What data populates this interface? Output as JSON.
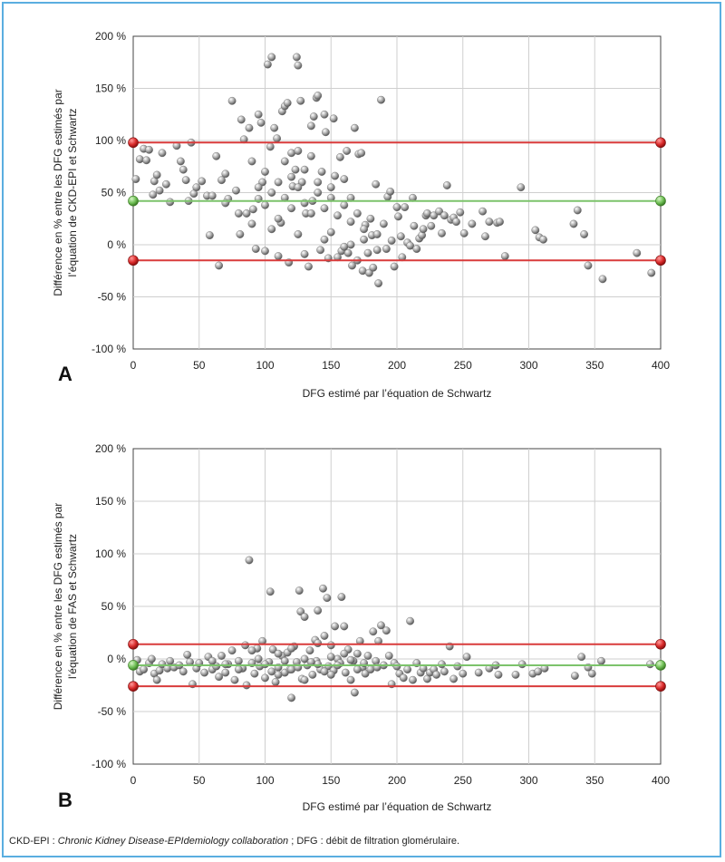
{
  "chart_data": [
    {
      "type": "scatter",
      "panel_label": "A",
      "xlabel": "DFG estimé par l’équation de Schwartz",
      "ylabel_lines": [
        "Différence  en  %  entre les DFG estimés par",
        "l’équation de CKD-EPI et Schwartz"
      ],
      "xlim": [
        0,
        400
      ],
      "ylim": [
        -100,
        200
      ],
      "x_ticks": [
        "0",
        "50",
        "100",
        "150",
        "200",
        "250",
        "300",
        "350",
        "400"
      ],
      "y_ticks": [
        "200 %",
        "150 %",
        "100 %",
        "50 %",
        "0 %",
        "-50 %",
        "-100 %"
      ],
      "grid": true,
      "reference_lines": [
        {
          "kind": "upper limit of agreement",
          "y": 98,
          "color": "#d93b3b"
        },
        {
          "kind": "mean difference",
          "y": 42,
          "color": "#7cc36b"
        },
        {
          "kind": "lower limit of agreement",
          "y": -15,
          "color": "#d93b3b"
        }
      ],
      "points": [
        [
          2,
          63
        ],
        [
          5,
          82
        ],
        [
          8,
          92
        ],
        [
          10,
          81
        ],
        [
          12,
          91
        ],
        [
          15,
          48
        ],
        [
          16,
          61
        ],
        [
          18,
          67
        ],
        [
          20,
          52
        ],
        [
          22,
          88
        ],
        [
          25,
          58
        ],
        [
          28,
          41
        ],
        [
          33,
          95
        ],
        [
          36,
          80
        ],
        [
          38,
          72
        ],
        [
          40,
          62
        ],
        [
          42,
          42
        ],
        [
          44,
          98
        ],
        [
          46,
          49
        ],
        [
          48,
          55
        ],
        [
          52,
          61
        ],
        [
          56,
          47
        ],
        [
          58,
          9
        ],
        [
          60,
          47
        ],
        [
          63,
          85
        ],
        [
          65,
          -20
        ],
        [
          67,
          62
        ],
        [
          70,
          68
        ],
        [
          72,
          44
        ],
        [
          75,
          138
        ],
        [
          78,
          52
        ],
        [
          81,
          10
        ],
        [
          82,
          120
        ],
        [
          84,
          101
        ],
        [
          86,
          30
        ],
        [
          88,
          112
        ],
        [
          90,
          80
        ],
        [
          91,
          34
        ],
        [
          93,
          -4
        ],
        [
          95,
          125
        ],
        [
          97,
          117
        ],
        [
          98,
          60
        ],
        [
          100,
          -6
        ],
        [
          102,
          173
        ],
        [
          104,
          94
        ],
        [
          105,
          180
        ],
        [
          107,
          112
        ],
        [
          109,
          102
        ],
        [
          110,
          -11
        ],
        [
          112,
          21
        ],
        [
          113,
          128
        ],
        [
          115,
          133
        ],
        [
          117,
          136
        ],
        [
          118,
          -17
        ],
        [
          120,
          88
        ],
        [
          121,
          56
        ],
        [
          123,
          72
        ],
        [
          124,
          180
        ],
        [
          125,
          172
        ],
        [
          127,
          138
        ],
        [
          128,
          60
        ],
        [
          130,
          -9
        ],
        [
          131,
          30
        ],
        [
          133,
          -21
        ],
        [
          135,
          114
        ],
        [
          136,
          42
        ],
        [
          137,
          123
        ],
        [
          139,
          141
        ],
        [
          140,
          143
        ],
        [
          142,
          -5
        ],
        [
          143,
          70
        ],
        [
          145,
          125
        ],
        [
          146,
          108
        ],
        [
          148,
          -13
        ],
        [
          150,
          12
        ],
        [
          152,
          121
        ],
        [
          153,
          66
        ],
        [
          155,
          -12
        ],
        [
          157,
          84
        ],
        [
          158,
          -6
        ],
        [
          160,
          63
        ],
        [
          162,
          90
        ],
        [
          163,
          -8
        ],
        [
          165,
          45
        ],
        [
          166,
          -20
        ],
        [
          168,
          112
        ],
        [
          170,
          -15
        ],
        [
          171,
          87
        ],
        [
          173,
          88
        ],
        [
          174,
          -25
        ],
        [
          176,
          19
        ],
        [
          178,
          -8
        ],
        [
          179,
          -27
        ],
        [
          181,
          9
        ],
        [
          182,
          -22
        ],
        [
          184,
          58
        ],
        [
          186,
          -37
        ],
        [
          188,
          139
        ],
        [
          190,
          20
        ],
        [
          192,
          -4
        ],
        [
          193,
          46
        ],
        [
          195,
          51
        ],
        [
          196,
          4
        ],
        [
          198,
          -21
        ],
        [
          200,
          36
        ],
        [
          201,
          27
        ],
        [
          203,
          8
        ],
        [
          204,
          -12
        ],
        [
          206,
          36
        ],
        [
          208,
          2
        ],
        [
          210,
          -1
        ],
        [
          212,
          45
        ],
        [
          213,
          18
        ],
        [
          215,
          -4
        ],
        [
          217,
          6
        ],
        [
          219,
          9
        ],
        [
          220,
          15
        ],
        [
          222,
          28
        ],
        [
          223,
          30
        ],
        [
          226,
          18
        ],
        [
          228,
          28
        ],
        [
          232,
          32
        ],
        [
          234,
          11
        ],
        [
          236,
          28
        ],
        [
          238,
          57
        ],
        [
          241,
          24
        ],
        [
          243,
          26
        ],
        [
          245,
          22
        ],
        [
          248,
          31
        ],
        [
          251,
          11
        ],
        [
          257,
          20
        ],
        [
          265,
          32
        ],
        [
          267,
          8
        ],
        [
          270,
          22
        ],
        [
          276,
          21
        ],
        [
          278,
          22
        ],
        [
          282,
          -11
        ],
        [
          294,
          55
        ],
        [
          305,
          14
        ],
        [
          308,
          7
        ],
        [
          311,
          5
        ],
        [
          334,
          20
        ],
        [
          337,
          33
        ],
        [
          342,
          10
        ],
        [
          345,
          -20
        ],
        [
          356,
          -33
        ],
        [
          382,
          -8
        ],
        [
          393,
          -27
        ],
        [
          95,
          44
        ],
        [
          100,
          38
        ],
        [
          105,
          50
        ],
        [
          110,
          25
        ],
        [
          115,
          45
        ],
        [
          120,
          35
        ],
        [
          125,
          55
        ],
        [
          130,
          40
        ],
        [
          135,
          30
        ],
        [
          140,
          50
        ],
        [
          145,
          35
        ],
        [
          150,
          45
        ],
        [
          155,
          28
        ],
        [
          160,
          38
        ],
        [
          165,
          22
        ],
        [
          170,
          30
        ],
        [
          175,
          15
        ],
        [
          180,
          25
        ],
        [
          185,
          10
        ],
        [
          100,
          70
        ],
        [
          110,
          60
        ],
        [
          120,
          65
        ],
        [
          130,
          72
        ],
        [
          140,
          60
        ],
        [
          150,
          55
        ],
        [
          115,
          80
        ],
        [
          125,
          90
        ],
        [
          135,
          85
        ],
        [
          105,
          15
        ],
        [
          125,
          10
        ],
        [
          145,
          5
        ],
        [
          165,
          0
        ],
        [
          90,
          20
        ],
        [
          80,
          30
        ],
        [
          70,
          40
        ],
        [
          95,
          55
        ],
        [
          160,
          -2
        ],
        [
          175,
          5
        ],
        [
          185,
          -5
        ]
      ],
      "point_color": "#9a9a9a"
    },
    {
      "type": "scatter",
      "panel_label": "B",
      "xlabel": "DFG estimé par l’équation de Schwartz",
      "ylabel_lines": [
        "Différence en %  entre les DFG estimés par",
        "l’équation de FAS et Schwartz"
      ],
      "xlim": [
        0,
        400
      ],
      "ylim": [
        -100,
        200
      ],
      "x_ticks": [
        "0",
        "50",
        "100",
        "150",
        "200",
        "250",
        "300",
        "350",
        "400"
      ],
      "y_ticks": [
        "200 %",
        "150 %",
        "100 %",
        "50 %",
        "0 %",
        "-50 %",
        "-100 %"
      ],
      "grid": true,
      "reference_lines": [
        {
          "kind": "upper limit of agreement",
          "y": 14,
          "color": "#d93b3b"
        },
        {
          "kind": "mean difference",
          "y": -6,
          "color": "#7cc36b"
        },
        {
          "kind": "lower limit of agreement",
          "y": -26,
          "color": "#d93b3b"
        }
      ],
      "points": [
        [
          3,
          -1
        ],
        [
          5,
          -12
        ],
        [
          8,
          -10
        ],
        [
          12,
          -4
        ],
        [
          14,
          0
        ],
        [
          16,
          -14
        ],
        [
          18,
          -20
        ],
        [
          20,
          -11
        ],
        [
          22,
          -5
        ],
        [
          26,
          -9
        ],
        [
          28,
          -2
        ],
        [
          31,
          -8
        ],
        [
          35,
          -6
        ],
        [
          38,
          -12
        ],
        [
          41,
          4
        ],
        [
          43,
          -3
        ],
        [
          45,
          -24
        ],
        [
          48,
          -9
        ],
        [
          50,
          -4
        ],
        [
          54,
          -13
        ],
        [
          57,
          2
        ],
        [
          60,
          -10
        ],
        [
          63,
          -7
        ],
        [
          65,
          -17
        ],
        [
          67,
          3
        ],
        [
          70,
          -13
        ],
        [
          72,
          -5
        ],
        [
          75,
          8
        ],
        [
          77,
          -20
        ],
        [
          80,
          -2
        ],
        [
          83,
          -9
        ],
        [
          85,
          13
        ],
        [
          86,
          -25
        ],
        [
          88,
          94
        ],
        [
          90,
          -4
        ],
        [
          92,
          -14
        ],
        [
          94,
          10
        ],
        [
          96,
          -7
        ],
        [
          98,
          17
        ],
        [
          100,
          -18
        ],
        [
          103,
          -3
        ],
        [
          104,
          64
        ],
        [
          106,
          9
        ],
        [
          108,
          -22
        ],
        [
          110,
          -8
        ],
        [
          113,
          3
        ],
        [
          115,
          -13
        ],
        [
          117,
          6
        ],
        [
          119,
          -10
        ],
        [
          120,
          -37
        ],
        [
          122,
          12
        ],
        [
          124,
          -3
        ],
        [
          126,
          65
        ],
        [
          127,
          45
        ],
        [
          128,
          -19
        ],
        [
          130,
          40
        ],
        [
          132,
          -6
        ],
        [
          134,
          8
        ],
        [
          136,
          -15
        ],
        [
          138,
          18
        ],
        [
          139,
          -2
        ],
        [
          140,
          46
        ],
        [
          142,
          -10
        ],
        [
          144,
          67
        ],
        [
          145,
          22
        ],
        [
          147,
          58
        ],
        [
          148,
          -7
        ],
        [
          150,
          13
        ],
        [
          152,
          -11
        ],
        [
          153,
          31
        ],
        [
          155,
          0
        ],
        [
          157,
          -4
        ],
        [
          158,
          59
        ],
        [
          160,
          31
        ],
        [
          161,
          -13
        ],
        [
          163,
          9
        ],
        [
          165,
          -20
        ],
        [
          167,
          -2
        ],
        [
          168,
          -32
        ],
        [
          170,
          5
        ],
        [
          172,
          17
        ],
        [
          174,
          -8
        ],
        [
          176,
          -14
        ],
        [
          178,
          3
        ],
        [
          180,
          -10
        ],
        [
          182,
          26
        ],
        [
          184,
          -2
        ],
        [
          186,
          17
        ],
        [
          188,
          32
        ],
        [
          190,
          -6
        ],
        [
          192,
          27
        ],
        [
          194,
          3
        ],
        [
          196,
          -24
        ],
        [
          198,
          -4
        ],
        [
          200,
          -7
        ],
        [
          202,
          -14
        ],
        [
          205,
          -18
        ],
        [
          208,
          -10
        ],
        [
          210,
          36
        ],
        [
          212,
          -20
        ],
        [
          215,
          -4
        ],
        [
          218,
          -13
        ],
        [
          220,
          -9
        ],
        [
          223,
          -19
        ],
        [
          225,
          -13
        ],
        [
          228,
          -10
        ],
        [
          230,
          -15
        ],
        [
          234,
          -5
        ],
        [
          236,
          -12
        ],
        [
          240,
          12
        ],
        [
          243,
          -19
        ],
        [
          246,
          -7
        ],
        [
          250,
          -14
        ],
        [
          253,
          2
        ],
        [
          262,
          -13
        ],
        [
          270,
          -9
        ],
        [
          275,
          -6
        ],
        [
          277,
          -15
        ],
        [
          290,
          -15
        ],
        [
          295,
          -5
        ],
        [
          303,
          -14
        ],
        [
          307,
          -12
        ],
        [
          312,
          -9
        ],
        [
          335,
          -16
        ],
        [
          340,
          2
        ],
        [
          345,
          -8
        ],
        [
          348,
          -14
        ],
        [
          355,
          -2
        ],
        [
          392,
          -5
        ],
        [
          100,
          -5
        ],
        [
          110,
          5
        ],
        [
          120,
          -10
        ],
        [
          130,
          0
        ],
        [
          140,
          -5
        ],
        [
          150,
          -15
        ],
        [
          160,
          5
        ],
        [
          170,
          -10
        ],
        [
          95,
          0
        ],
        [
          105,
          -12
        ],
        [
          115,
          -2
        ],
        [
          125,
          -8
        ],
        [
          135,
          -3
        ],
        [
          145,
          -12
        ],
        [
          155,
          -6
        ],
        [
          165,
          -1
        ],
        [
          175,
          -4
        ],
        [
          185,
          -8
        ],
        [
          110,
          -15
        ],
        [
          130,
          -20
        ],
        [
          150,
          2
        ],
        [
          80,
          -10
        ],
        [
          70,
          -5
        ],
        [
          60,
          -2
        ],
        [
          90,
          8
        ],
        [
          120,
          10
        ],
        [
          140,
          15
        ]
      ],
      "point_color": "#9a9a9a"
    }
  ],
  "footnote": {
    "prefix": "CKD-EPI : ",
    "italic": "Chronic Kidney Disease-EPIdemiology collaboration",
    "suffix": " ; DFG : débit de filtration glomérulaire."
  }
}
